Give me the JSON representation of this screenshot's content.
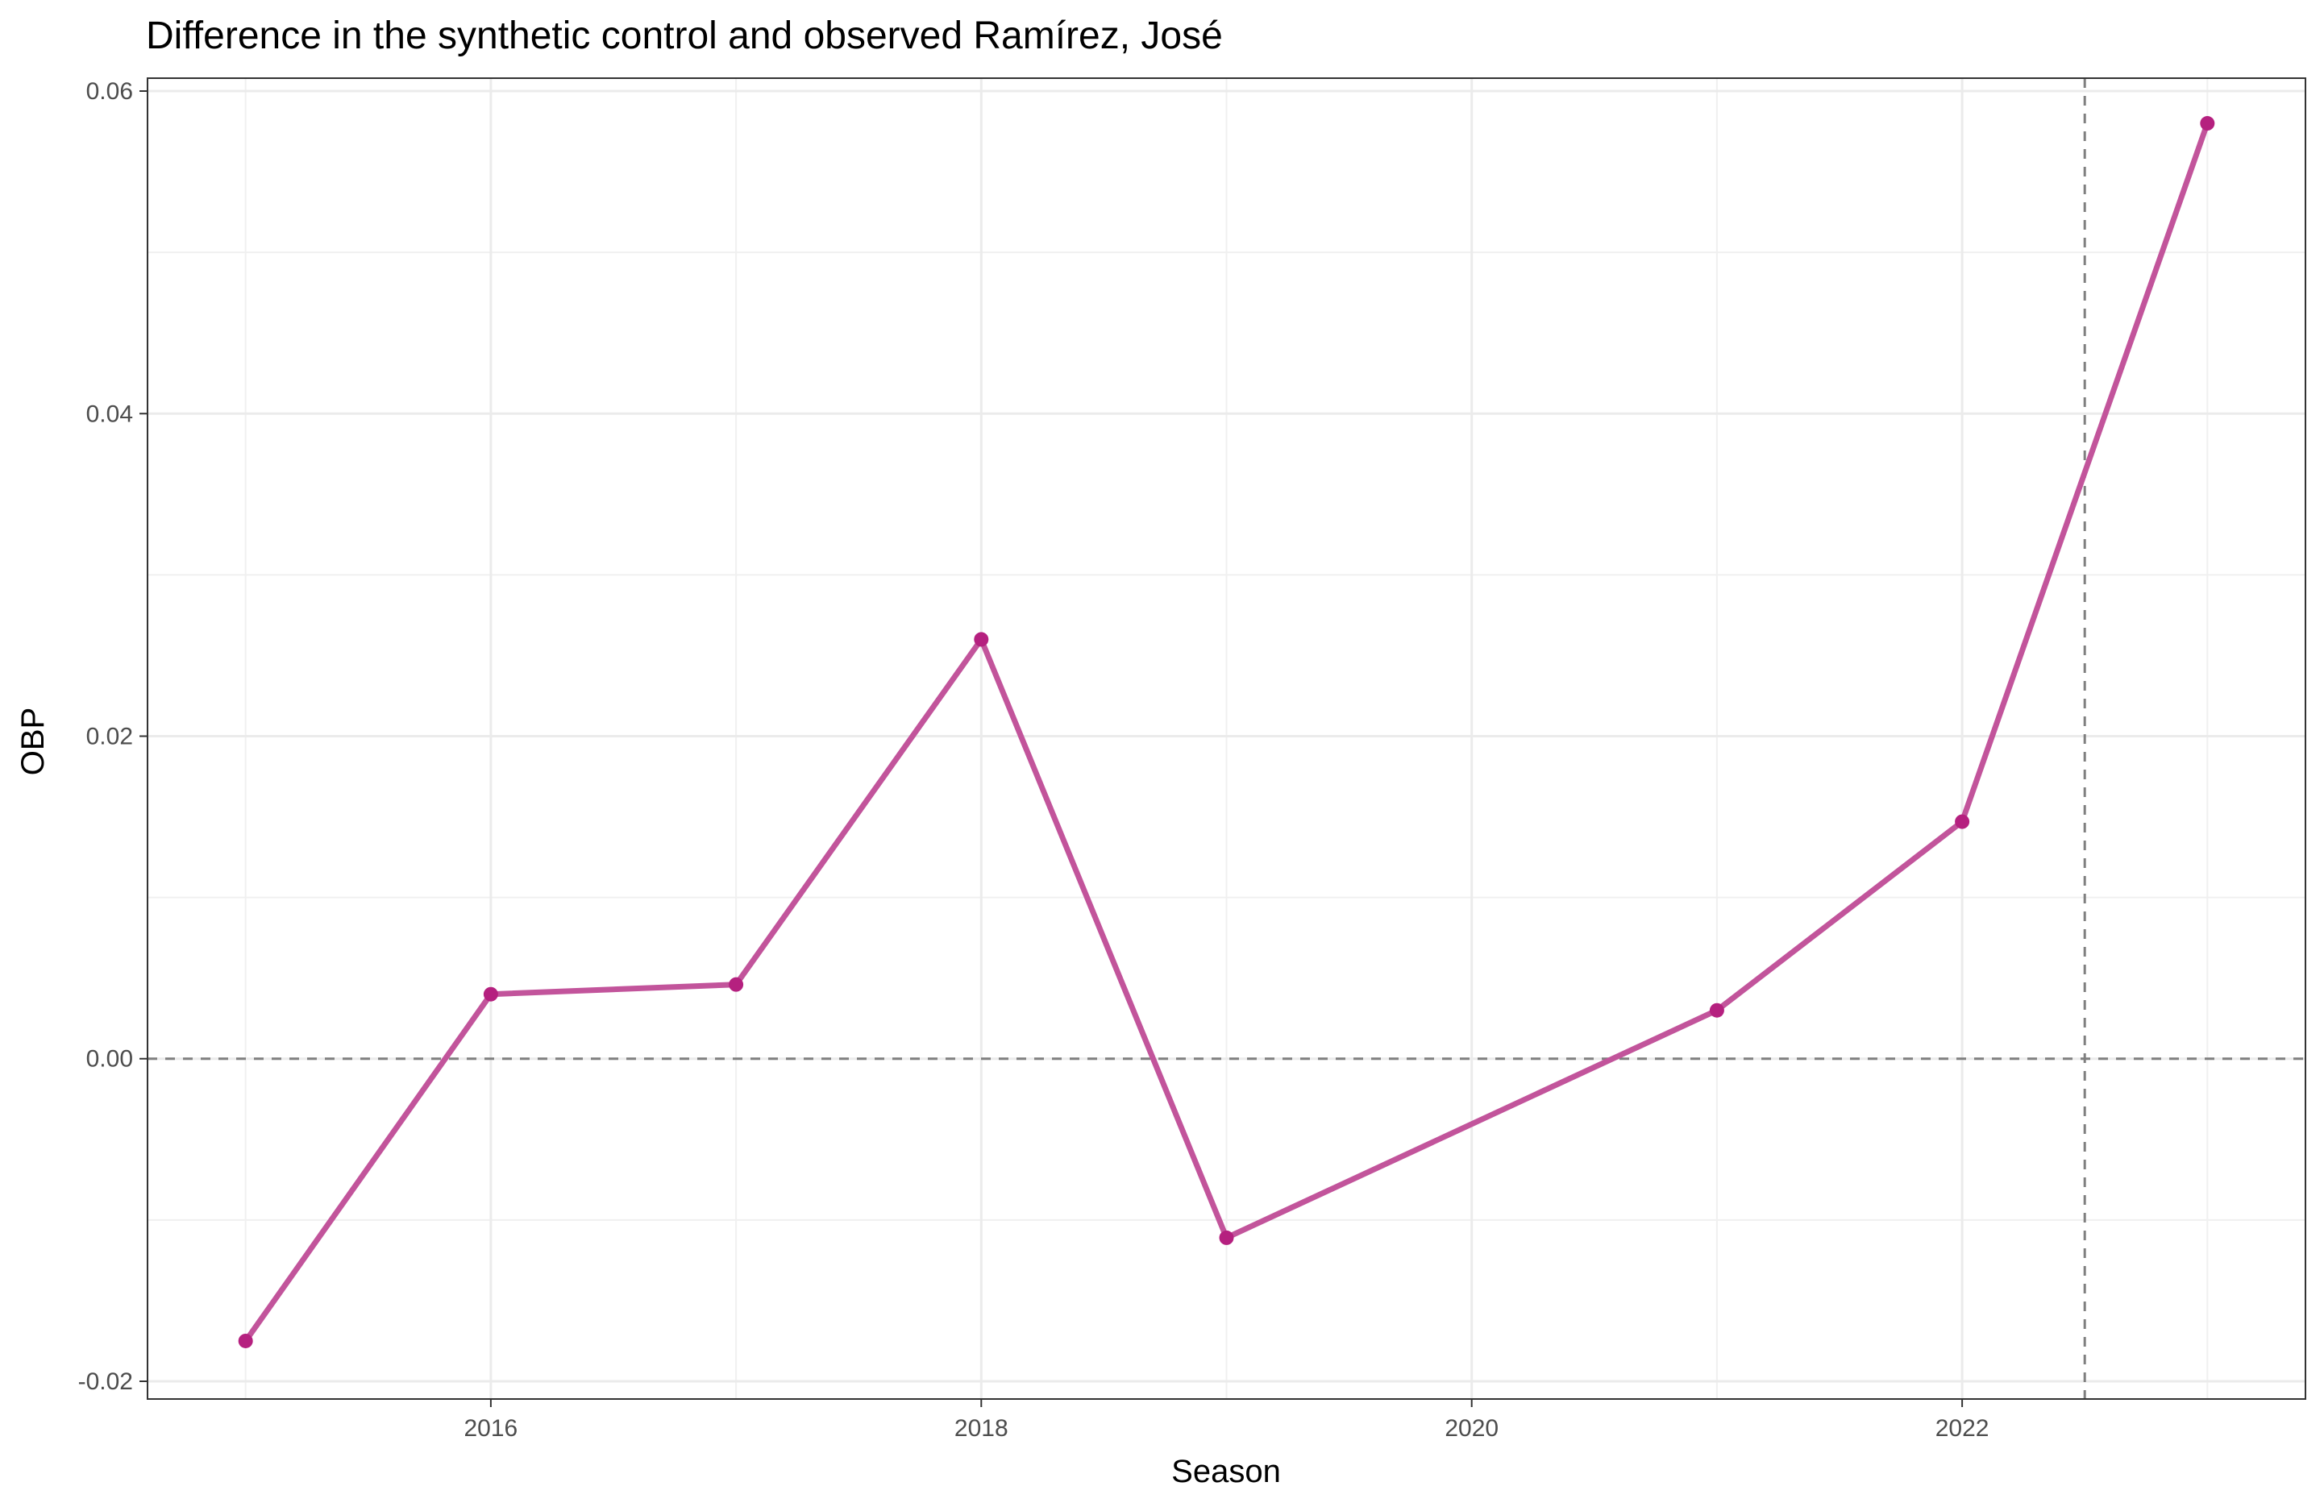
{
  "chart_data": {
    "type": "line",
    "title": "Difference in the synthetic control and observed Ramírez, José",
    "xlabel": "Season",
    "ylabel": "OBP",
    "x": [
      2015,
      2016,
      2017,
      2018,
      2019,
      2021,
      2022,
      2023
    ],
    "series": [
      {
        "values": [
          -0.0175,
          0.004,
          0.0046,
          0.026,
          -0.0111,
          0.003,
          0.0147,
          0.058
        ],
        "color": "#c2549b",
        "point_color": "#b5207f"
      }
    ],
    "xlim": [
      2014.6,
      2023.4
    ],
    "ylim": [
      -0.0211,
      0.0608
    ],
    "x_ticks": [
      "2016",
      "2018",
      "2020",
      "2022"
    ],
    "y_ticks": [
      "-0.02",
      "0.00",
      "0.02",
      "0.04",
      "0.06"
    ],
    "reference_lines": {
      "horizontal": 0.0,
      "vertical": 2022.5
    },
    "grid": true,
    "theme": "bw"
  }
}
